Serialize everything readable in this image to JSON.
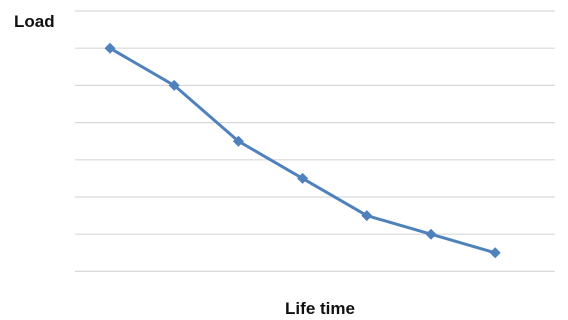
{
  "chart_data": {
    "type": "line",
    "title": "",
    "xlabel": "Life time",
    "ylabel": "Load",
    "x": [
      1,
      2,
      3,
      4,
      5,
      6,
      7
    ],
    "series": [
      {
        "values": [
          6.0,
          5.0,
          3.5,
          2.5,
          1.5,
          1.0,
          0.5
        ]
      }
    ],
    "ylim": [
      -0.5,
      7.0
    ],
    "grid": true,
    "line_color": "#4f81bd",
    "marker": "diamond"
  }
}
